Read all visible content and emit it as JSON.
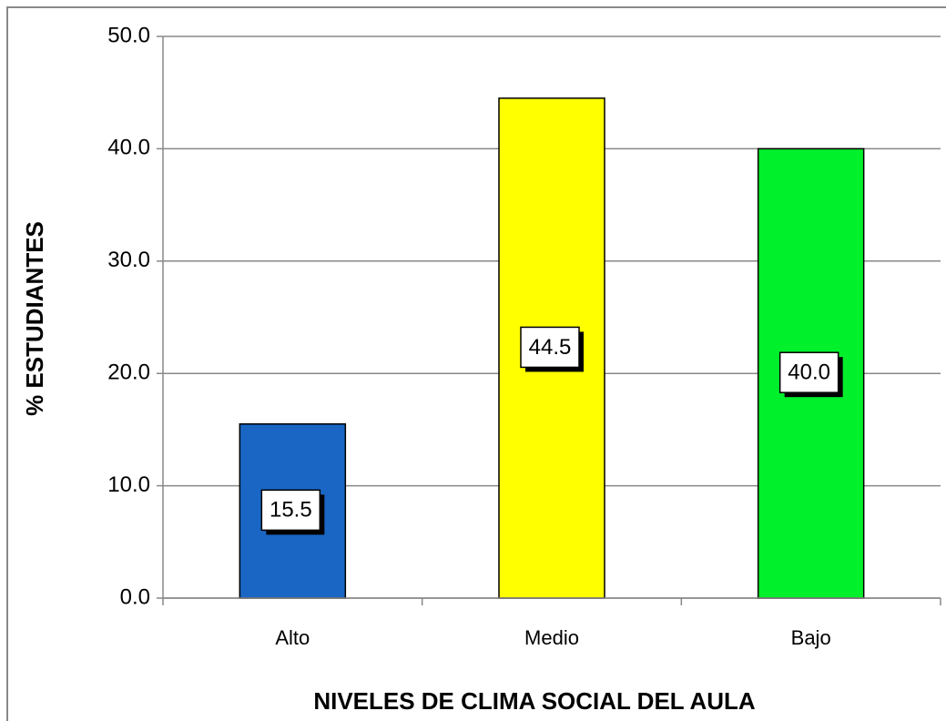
{
  "chart_data": {
    "type": "bar",
    "xlabel": "NIVELES DE CLIMA SOCIAL DEL AULA",
    "ylabel": "% ESTUDIANTES",
    "categories": [
      "Alto",
      "Medio",
      "Bajo"
    ],
    "values": [
      15.5,
      44.5,
      40.0
    ],
    "value_labels": [
      "15.5",
      "44.5",
      "40.0"
    ],
    "colors": [
      "#1a66c4",
      "#ffff00",
      "#00f02c"
    ],
    "ylim": [
      0,
      50
    ],
    "yticks": [
      {
        "value": 0,
        "label": "0.0"
      },
      {
        "value": 10,
        "label": "10.0"
      },
      {
        "value": 20,
        "label": "20.0"
      },
      {
        "value": 30,
        "label": "30.0"
      },
      {
        "value": 40,
        "label": "40.0"
      },
      {
        "value": 50,
        "label": "50.0"
      }
    ],
    "grid": true
  }
}
